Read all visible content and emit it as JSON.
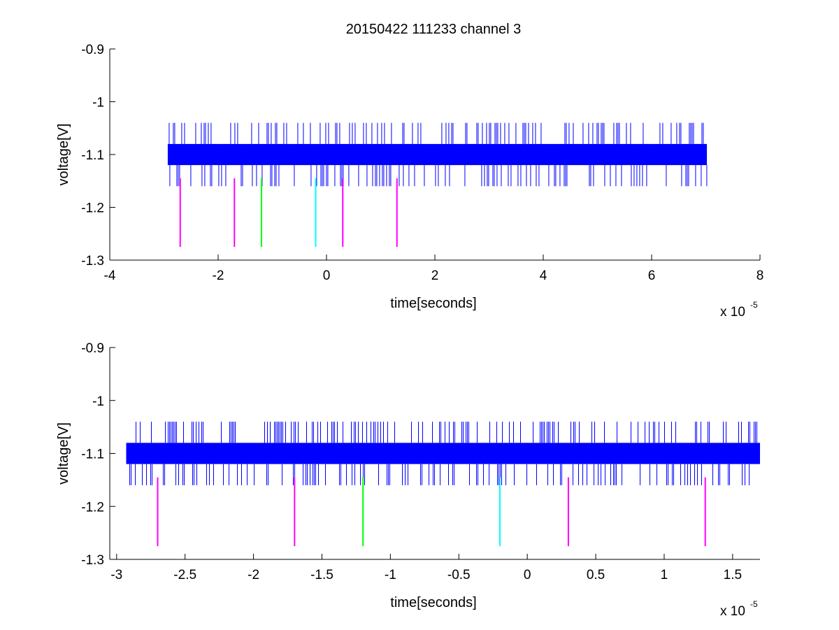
{
  "figure": {
    "title": "20150422 111233 channel 3"
  },
  "chart_data": [
    {
      "type": "line",
      "xlabel": "time[seconds]",
      "ylabel": "voltage[V]",
      "x_exponent_label": "x 10",
      "x_exponent": "-5",
      "xlim": [
        -4,
        8
      ],
      "ylim": [
        -1.3,
        -0.9
      ],
      "xticks": [
        -4,
        -2,
        0,
        2,
        4,
        6,
        8
      ],
      "xtick_labels": [
        "-4",
        "-2",
        "0",
        "2",
        "4",
        "6",
        "8"
      ],
      "yticks": [
        -1.3,
        -1.2,
        -1.1,
        -1.0,
        -0.9
      ],
      "ytick_labels": [
        "-1.3",
        "-1.2",
        "-1.1",
        "-1",
        "-0.9"
      ],
      "grid": false,
      "signal": {
        "color": "#0000ff",
        "x_start": -2.93,
        "x_end": 7.02,
        "band_low": -1.12,
        "band_high": -1.08,
        "spike_high": -1.04,
        "spike_low": -1.16
      },
      "markers": [
        {
          "x": -2.7,
          "y_top": -1.145,
          "y_bottom": -1.275,
          "color": "#ff00ff"
        },
        {
          "x": -1.7,
          "y_top": -1.145,
          "y_bottom": -1.275,
          "color": "#ff00ff"
        },
        {
          "x": -1.2,
          "y_top": -1.145,
          "y_bottom": -1.275,
          "color": "#00ff00"
        },
        {
          "x": -0.2,
          "y_top": -1.145,
          "y_bottom": -1.275,
          "color": "#00ffff"
        },
        {
          "x": 0.3,
          "y_top": -1.145,
          "y_bottom": -1.275,
          "color": "#ff00ff"
        },
        {
          "x": 1.3,
          "y_top": -1.145,
          "y_bottom": -1.275,
          "color": "#ff00ff"
        }
      ]
    },
    {
      "type": "line",
      "xlabel": "time[seconds]",
      "ylabel": "voltage[V]",
      "x_exponent_label": "x 10",
      "x_exponent": "-5",
      "xlim": [
        -3.05,
        1.7
      ],
      "ylim": [
        -1.3,
        -0.9
      ],
      "xticks": [
        -3,
        -2.5,
        -2,
        -1.5,
        -1,
        -0.5,
        0,
        0.5,
        1,
        1.5
      ],
      "xtick_labels": [
        "-3",
        "-2.5",
        "-2",
        "-1.5",
        "-1",
        "-0.5",
        "0",
        "0.5",
        "1",
        "1.5"
      ],
      "yticks": [
        -1.3,
        -1.2,
        -1.1,
        -1.0,
        -0.9
      ],
      "ytick_labels": [
        "-1.3",
        "-1.2",
        "-1.1",
        "-1",
        "-0.9"
      ],
      "grid": false,
      "signal": {
        "color": "#0000ff",
        "x_start": -2.93,
        "x_end": 1.7,
        "band_low": -1.12,
        "band_high": -1.08,
        "spike_high": -1.04,
        "spike_low": -1.16
      },
      "markers": [
        {
          "x": -2.7,
          "y_top": -1.145,
          "y_bottom": -1.275,
          "color": "#ff00ff"
        },
        {
          "x": -1.7,
          "y_top": -1.145,
          "y_bottom": -1.275,
          "color": "#ff00ff"
        },
        {
          "x": -1.2,
          "y_top": -1.145,
          "y_bottom": -1.275,
          "color": "#00ff00"
        },
        {
          "x": -0.2,
          "y_top": -1.145,
          "y_bottom": -1.275,
          "color": "#00ffff"
        },
        {
          "x": 0.3,
          "y_top": -1.145,
          "y_bottom": -1.275,
          "color": "#ff00ff"
        },
        {
          "x": 1.3,
          "y_top": -1.145,
          "y_bottom": -1.275,
          "color": "#ff00ff"
        }
      ]
    }
  ]
}
